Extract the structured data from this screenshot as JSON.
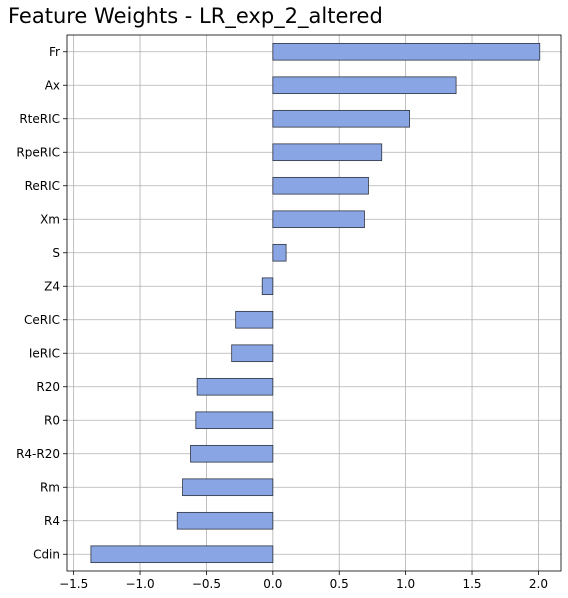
{
  "chart_data": {
    "type": "bar",
    "orientation": "horizontal",
    "title": "Feature Weights - LR_exp_2_altered",
    "xlabel": "",
    "ylabel": "",
    "categories": [
      "Fr",
      "Ax",
      "RteRIC",
      "RpeRIC",
      "ReRIC",
      "Xm",
      "S",
      "Z4",
      "CeRIC",
      "IeRIC",
      "R20",
      "R0",
      "R4-R20",
      "Rm",
      "R4",
      "Cdin"
    ],
    "values": [
      2.01,
      1.38,
      1.03,
      0.82,
      0.72,
      0.69,
      0.1,
      -0.08,
      -0.28,
      -0.31,
      -0.57,
      -0.58,
      -0.62,
      -0.68,
      -0.72,
      -1.37
    ],
    "xlim": [
      -1.55,
      2.17
    ],
    "xticks": [
      -1.5,
      -1.0,
      -0.5,
      0.0,
      0.5,
      1.0,
      1.5,
      2.0
    ],
    "xtick_labels": [
      "−1.5",
      "−1.0",
      "−0.5",
      "0.0",
      "0.5",
      "1.0",
      "1.5",
      "2.0"
    ],
    "grid": true,
    "bar_color": "#8aa5e3",
    "edge_color": "#2e3440"
  }
}
